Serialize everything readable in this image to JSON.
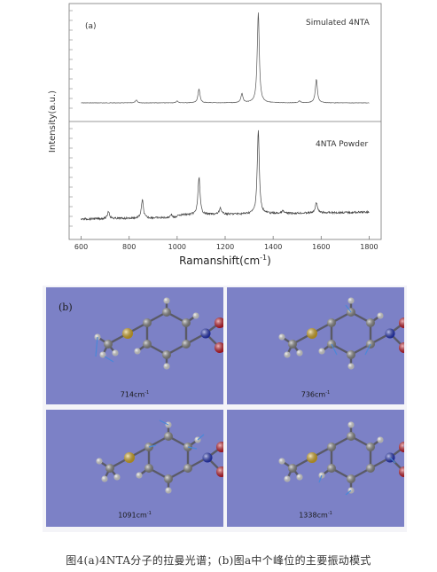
{
  "chart_data": {
    "type": "line",
    "panel_label": "(a)",
    "xlabel": "Ramanshift(cm",
    "xlabel_sup": "-1",
    "xlabel_close": ")",
    "ylabel": "Intensity(a.u.)",
    "xlim": [
      550,
      1850
    ],
    "xticks": [
      600,
      800,
      1000,
      1200,
      1400,
      1600,
      1800
    ],
    "series": [
      {
        "name": "Simulated 4NTA",
        "peaks": [
          {
            "x": 830,
            "h": 0.03
          },
          {
            "x": 1000,
            "h": 0.02
          },
          {
            "x": 1091,
            "h": 0.15
          },
          {
            "x": 1270,
            "h": 0.1
          },
          {
            "x": 1338,
            "h": 1.0
          },
          {
            "x": 1510,
            "h": 0.02
          },
          {
            "x": 1580,
            "h": 0.26
          }
        ]
      },
      {
        "name": "4NTA Powder",
        "peaks": [
          {
            "x": 714,
            "h": 0.09
          },
          {
            "x": 855,
            "h": 0.22
          },
          {
            "x": 975,
            "h": 0.04
          },
          {
            "x": 1091,
            "h": 0.45
          },
          {
            "x": 1180,
            "h": 0.08
          },
          {
            "x": 1338,
            "h": 1.0
          },
          {
            "x": 1440,
            "h": 0.03
          },
          {
            "x": 1580,
            "h": 0.13
          }
        ]
      }
    ]
  },
  "molecule_panel": {
    "label": "(b)",
    "modes": [
      {
        "value": "714",
        "unit": "cm",
        "exp": "-1"
      },
      {
        "value": "736",
        "unit": "cm",
        "exp": "-1"
      },
      {
        "value": "1091",
        "unit": "cm",
        "exp": "-1"
      },
      {
        "value": "1338",
        "unit": "cm",
        "exp": "-1"
      }
    ]
  },
  "caption": "图4(a)4NTA分子的拉曼光谱；(b)图a中个峰位的主要振动模式",
  "colors": {
    "panel_bg": "#7c81c6",
    "carbon": "#8a8a8a",
    "hydrogen": "#e8e8e8",
    "sulfur": "#e0b020",
    "nitrogen": "#2030c0",
    "oxygen": "#cc1020",
    "arrow": "#4a88d8"
  }
}
